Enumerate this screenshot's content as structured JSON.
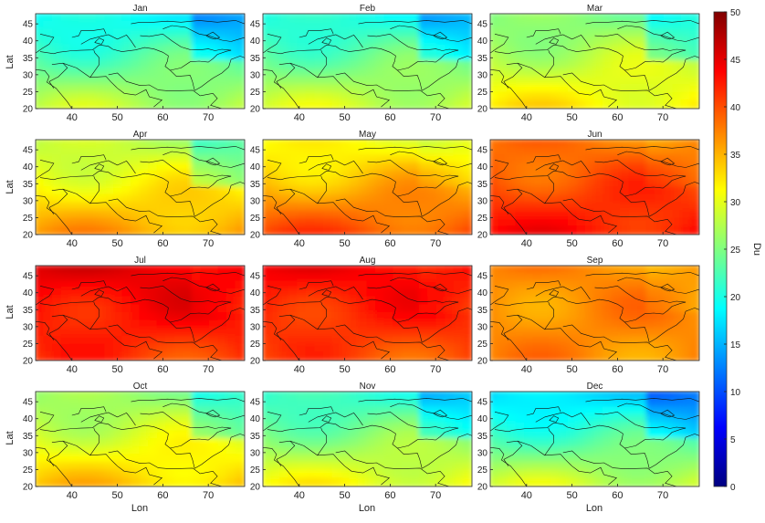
{
  "chart_data": {
    "type": "heatmap",
    "panel_layout": "4 rows x 3 columns of monthly maps",
    "colorbar": {
      "label": "Du",
      "range": [
        0,
        50
      ],
      "ticks": [
        "0",
        "5",
        "10",
        "15",
        "20",
        "25",
        "30",
        "35",
        "40",
        "45",
        "50"
      ],
      "colormap": "jet",
      "colors": [
        "#000080",
        "#0000ff",
        "#0080ff",
        "#00ffff",
        "#80ff80",
        "#ffff00",
        "#ff8000",
        "#ff0000",
        "#800000"
      ]
    },
    "xlabel": "Lon",
    "ylabel": "Lat",
    "xlim": [
      32,
      78
    ],
    "ylim": [
      20,
      48
    ],
    "xticks": [
      "40",
      "50",
      "60",
      "70"
    ],
    "yticks": [
      "20",
      "25",
      "30",
      "35",
      "40",
      "45"
    ],
    "months": [
      "Jan",
      "Feb",
      "Mar",
      "Apr",
      "May",
      "Jun",
      "Jul",
      "Aug",
      "Sep",
      "Oct",
      "Nov",
      "Dec"
    ],
    "monthly_estimates": [
      {
        "month": "Jan",
        "north": 19,
        "south": 28
      },
      {
        "month": "Feb",
        "north": 20,
        "south": 29
      },
      {
        "month": "Mar",
        "north": 25,
        "south": 32
      },
      {
        "month": "Apr",
        "north": 28,
        "south": 36
      },
      {
        "month": "May",
        "north": 31,
        "south": 40
      },
      {
        "month": "Jun",
        "north": 38,
        "south": 43
      },
      {
        "month": "Jul",
        "north": 45,
        "south": 41
      },
      {
        "month": "Aug",
        "north": 44,
        "south": 40
      },
      {
        "month": "Sep",
        "north": 37,
        "south": 37
      },
      {
        "month": "Oct",
        "north": 26,
        "south": 34
      },
      {
        "month": "Nov",
        "north": 21,
        "south": 31
      },
      {
        "month": "Dec",
        "north": 17,
        "south": 29
      }
    ]
  }
}
